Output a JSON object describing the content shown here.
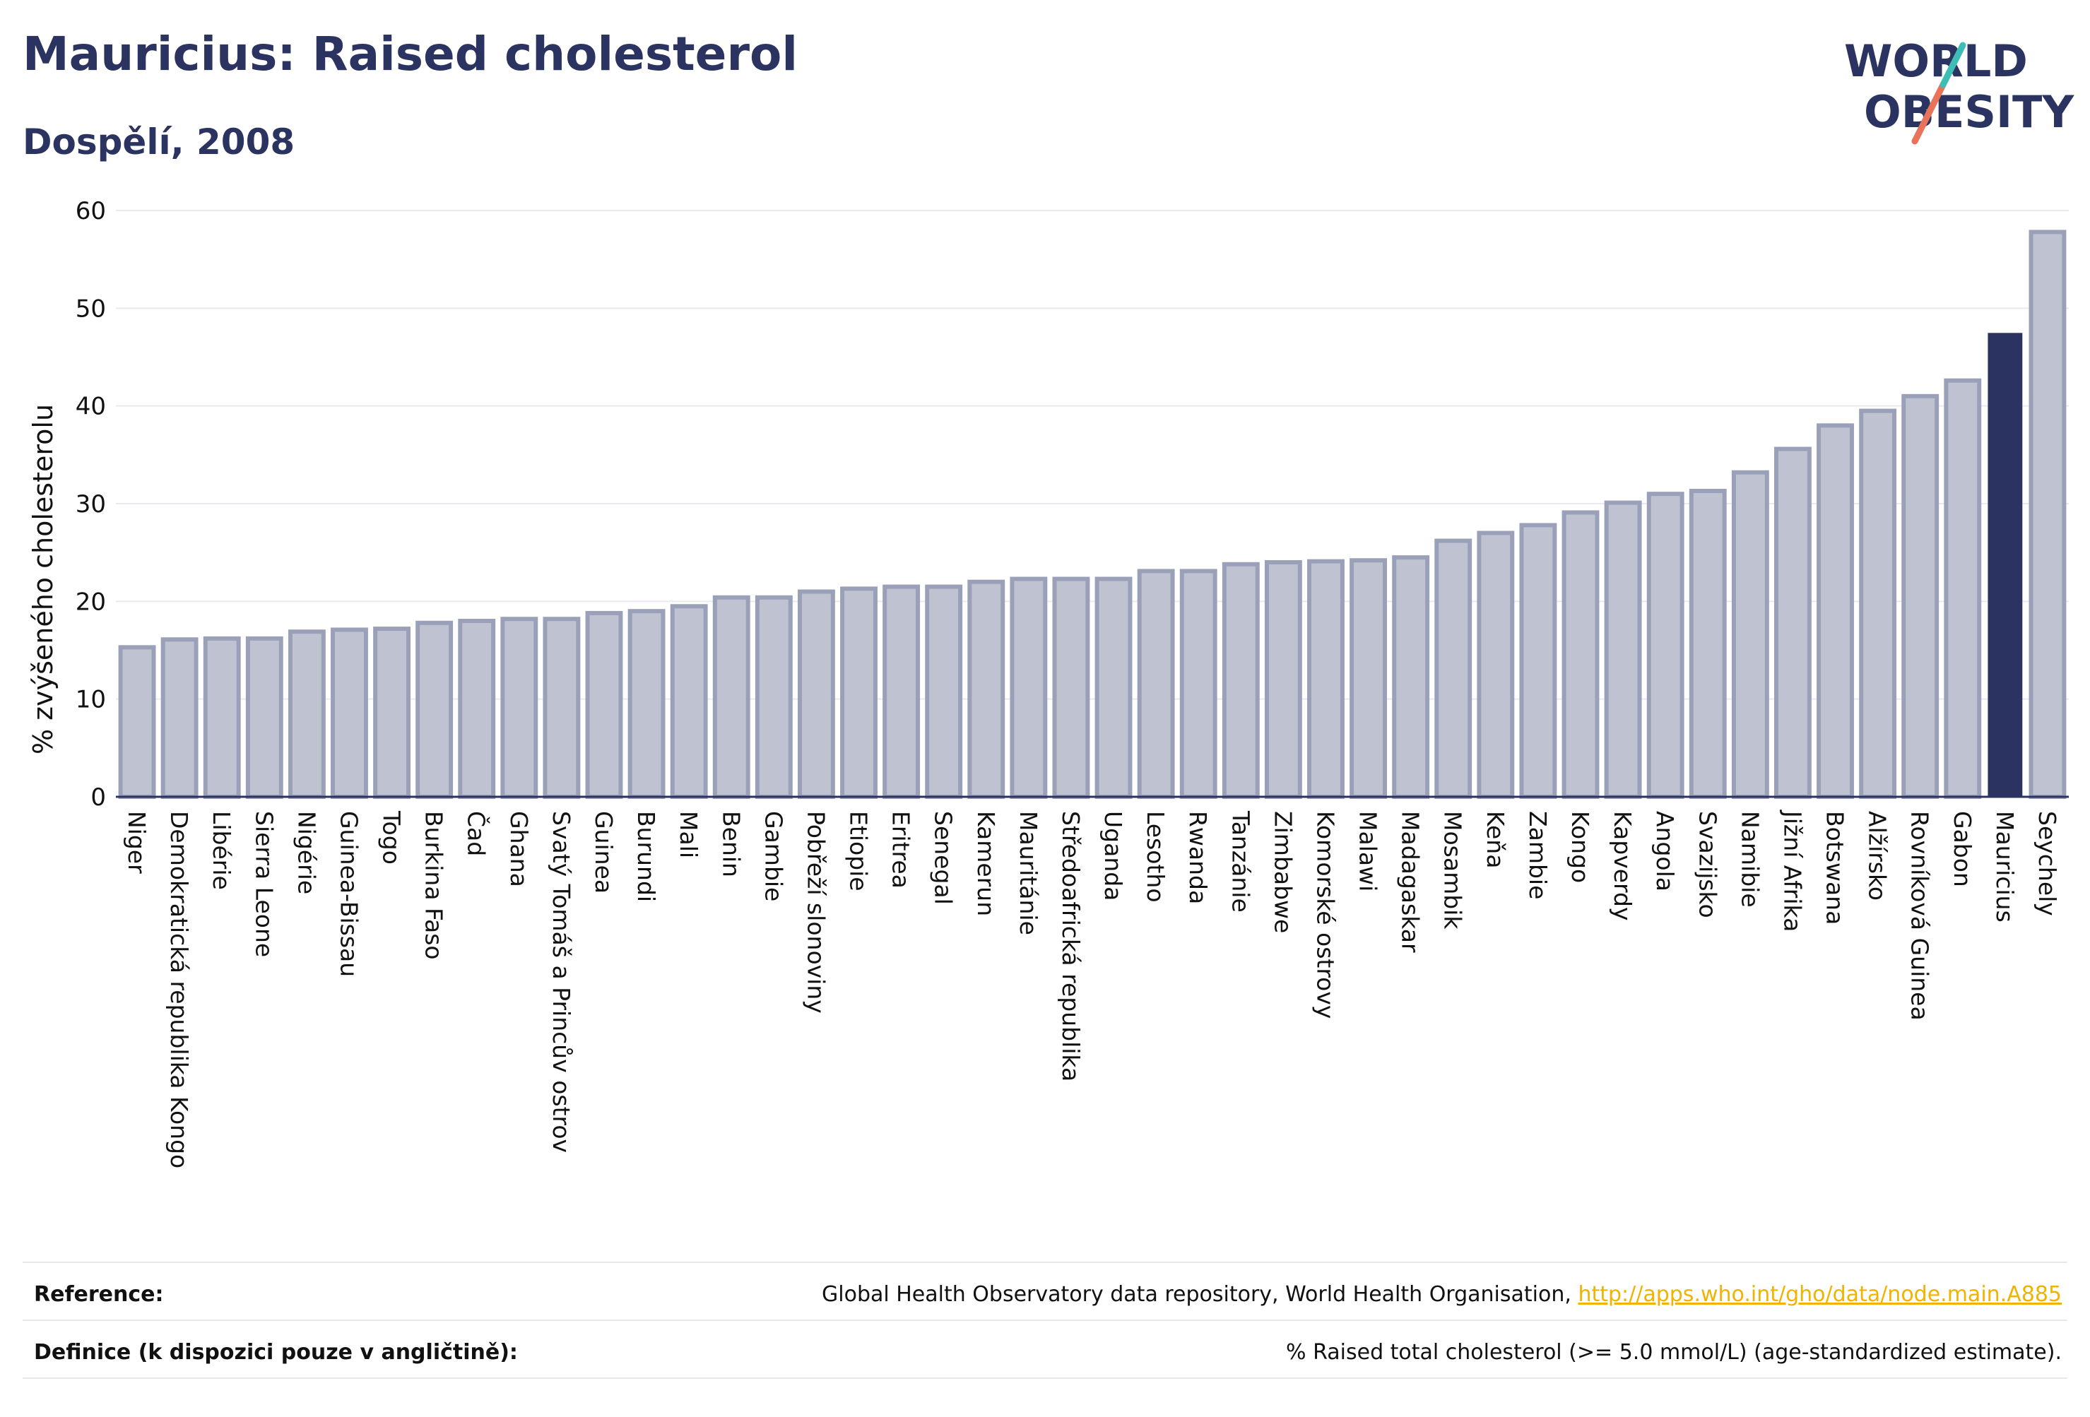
{
  "title": "Mauricius: Raised cholesterol",
  "subtitle": "Dospělí, 2008",
  "logo": {
    "line1": "WORLD",
    "line2": "OBESITY"
  },
  "chart_data": {
    "type": "bar",
    "ylabel": "% zvýšeného cholesterolu",
    "xlabel": "",
    "ylim": [
      0,
      60
    ],
    "yticks": [
      0,
      10,
      20,
      30,
      40,
      50,
      60
    ],
    "grid": true,
    "highlight": "Mauricius",
    "colors": {
      "bar": "#bfc3d1",
      "bar_border": "#9aa0b8",
      "highlight": "#2b3461",
      "grid": "#e8eaf0"
    },
    "categories": [
      "Niger",
      "Demokratická republika Kongo",
      "Libérie",
      "Sierra Leone",
      "Nigérie",
      "Guinea-Bissau",
      "Togo",
      "Burkina Faso",
      "Čad",
      "Ghana",
      "Svatý Tomáš a Princův ostrov",
      "Guinea",
      "Burundi",
      "Mali",
      "Benin",
      "Gambie",
      "Pobřeží slonoviny",
      "Etiopie",
      "Eritrea",
      "Senegal",
      "Kamerun",
      "Mauritánie",
      "Středoafrická republika",
      "Uganda",
      "Lesotho",
      "Rwanda",
      "Tanzánie",
      "Zimbabwe",
      "Komorské ostrovy",
      "Malawi",
      "Madagaskar",
      "Mosambik",
      "Keňa",
      "Zambie",
      "Kongo",
      "Kapverdy",
      "Angola",
      "Svazijsko",
      "Namibie",
      "Jižní Afrika",
      "Botswana",
      "Alžírsko",
      "Rovníková Guinea",
      "Gabon",
      "Mauricius",
      "Seychely"
    ],
    "values": [
      15.3,
      16.1,
      16.2,
      16.2,
      16.9,
      17.1,
      17.2,
      17.8,
      18.0,
      18.2,
      18.2,
      18.8,
      19.0,
      19.5,
      20.4,
      20.4,
      21.0,
      21.3,
      21.5,
      21.5,
      22.0,
      22.3,
      22.3,
      22.3,
      23.1,
      23.1,
      23.8,
      24.0,
      24.1,
      24.2,
      24.5,
      26.2,
      27.0,
      27.8,
      29.1,
      30.1,
      31.0,
      31.3,
      33.2,
      35.6,
      38.0,
      39.5,
      41.0,
      42.6,
      47.4,
      57.8
    ]
  },
  "footer": {
    "reference_label": "Reference:",
    "reference_text": "Global Health Observatory data repository, World Health Organisation, ",
    "reference_link": "http://apps.who.int/gho/data/node.main.A885",
    "definition_label": "Definice (k dispozici pouze v angličtině):",
    "definition_text": "% Raised total cholesterol (>= 5.0 mmol/L) (age-standardized estimate)."
  }
}
